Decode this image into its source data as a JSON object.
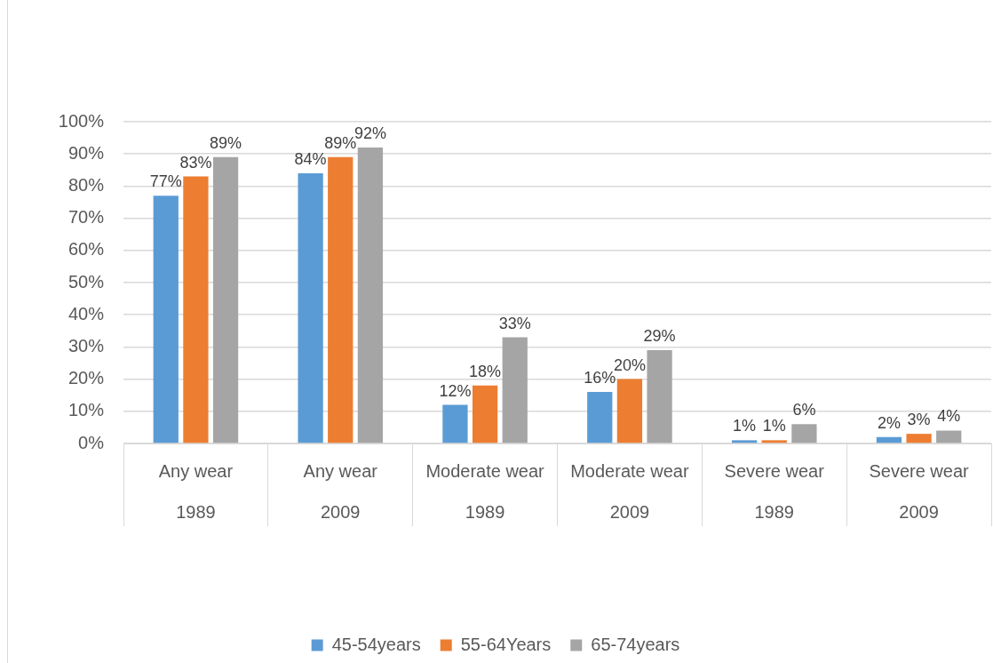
{
  "chart_data": {
    "type": "bar",
    "categories": [
      "Any wear\n1989",
      "Any wear\n2009",
      "Moderate wear\n1989",
      "Moderate wear\n2009",
      "Severe wear\n1989",
      "Severe wear\n2009"
    ],
    "series": [
      {
        "name": "45-54years",
        "color": "#5b9bd5",
        "values": [
          77,
          84,
          12,
          16,
          1,
          2
        ],
        "value_labels": [
          "77%",
          "84%",
          "12%",
          "16%",
          "1%",
          "2%"
        ]
      },
      {
        "name": "55-64Years",
        "color": "#ed7d31",
        "values": [
          83,
          89,
          18,
          20,
          1,
          3
        ],
        "value_labels": [
          "83%",
          "89%",
          "18%",
          "20%",
          "1%",
          "3%"
        ]
      },
      {
        "name": "65-74years",
        "color": "#a5a5a5",
        "values": [
          89,
          92,
          33,
          29,
          6,
          4
        ],
        "value_labels": [
          "89%",
          "92%",
          "33%",
          "29%",
          "6%",
          "4%"
        ]
      }
    ],
    "ylim": [
      0,
      100
    ],
    "yticks": [
      {
        "value": 0,
        "label": "0%"
      },
      {
        "value": 10,
        "label": "10%"
      },
      {
        "value": 20,
        "label": "20%"
      },
      {
        "value": 30,
        "label": "30%"
      },
      {
        "value": 40,
        "label": "40%"
      },
      {
        "value": 50,
        "label": "50%"
      },
      {
        "value": 60,
        "label": "60%"
      },
      {
        "value": 70,
        "label": "70%"
      },
      {
        "value": 80,
        "label": "80%"
      },
      {
        "value": 90,
        "label": "90%"
      },
      {
        "value": 100,
        "label": "100%"
      }
    ],
    "grid": "y",
    "legend": "bottom"
  }
}
